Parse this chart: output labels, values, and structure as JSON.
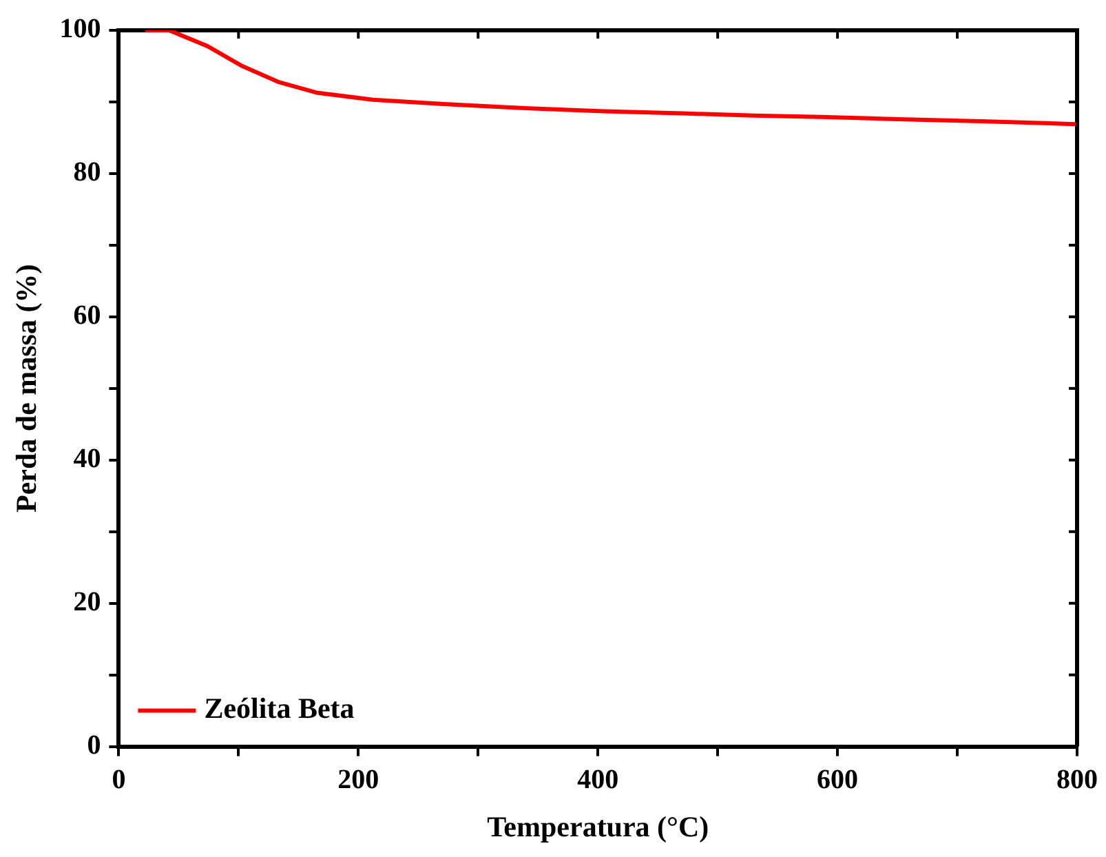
{
  "chart_data": {
    "type": "line",
    "xlabel": "Temperatura (°C)",
    "ylabel": "Perda de massa (%)",
    "x": [
      22,
      42,
      74,
      102,
      133,
      165,
      212,
      271,
      330,
      405,
      470,
      530,
      586,
      650,
      720,
      799
    ],
    "series": [
      {
        "name": "Zeólita Beta",
        "color": "#ff0000",
        "values": [
          100,
          100,
          97.8,
          95.1,
          92.8,
          91.3,
          90.3,
          89.7,
          89.2,
          88.7,
          88.4,
          88.1,
          87.9,
          87.6,
          87.3,
          86.9
        ]
      }
    ],
    "xlim": [
      0,
      800
    ],
    "ylim": [
      0,
      100
    ],
    "xticks": [
      0,
      {
        "value": 100,
        "label": null
      },
      200,
      {
        "value": 300,
        "label": null
      },
      400,
      {
        "value": 500,
        "label": null
      },
      600,
      {
        "value": 700,
        "label": null
      },
      800
    ],
    "yticks": [
      0,
      {
        "value": 10,
        "label": null
      },
      20,
      {
        "value": 30,
        "label": null
      },
      40,
      {
        "value": 50,
        "label": null
      },
      60,
      {
        "value": 70,
        "label": null
      },
      80,
      {
        "value": 90,
        "label": null
      },
      100
    ],
    "legend": "bottom left",
    "grid": false,
    "marker": "none",
    "line_style": "solid"
  }
}
